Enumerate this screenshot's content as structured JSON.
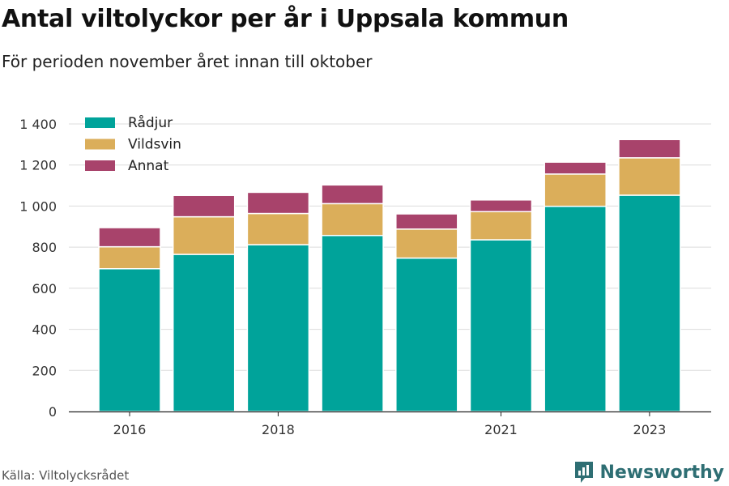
{
  "title": "Antal viltolyckor per år i Uppsala kommun",
  "subtitle": "För perioden november året innan till oktober",
  "source": "Källa: Viltolycksrådet",
  "brand": "Newsworthy",
  "brand_icon": "newsworthy-logo-icon",
  "chart_data": {
    "type": "bar",
    "stacked": true,
    "categories": [
      "2016",
      "2017",
      "2018",
      "2019",
      "2020",
      "2021",
      "2022",
      "2023"
    ],
    "x_tick_labels": [
      "2016",
      "",
      "2018",
      "",
      "",
      "2021",
      "",
      "2023"
    ],
    "series": [
      {
        "name": "Rådjur",
        "color": "#00a39a",
        "values": [
          695,
          765,
          812,
          857,
          747,
          836,
          999,
          1053
        ]
      },
      {
        "name": "Vildsvin",
        "color": "#dbae5a",
        "values": [
          107,
          183,
          152,
          155,
          141,
          137,
          157,
          182
        ]
      },
      {
        "name": "Annat",
        "color": "#a8436b",
        "values": [
          93,
          104,
          103,
          91,
          74,
          57,
          58,
          89
        ]
      }
    ],
    "ylim": [
      0,
      1400
    ],
    "yticks": [
      0,
      200,
      400,
      600,
      800,
      1000,
      1200,
      1400
    ],
    "ytick_labels": [
      "0",
      "200",
      "400",
      "600",
      "800",
      "1 000",
      "1 200",
      "1 400"
    ],
    "xlabel": "",
    "ylabel": "",
    "grid": true,
    "legend_position": "top-left"
  }
}
